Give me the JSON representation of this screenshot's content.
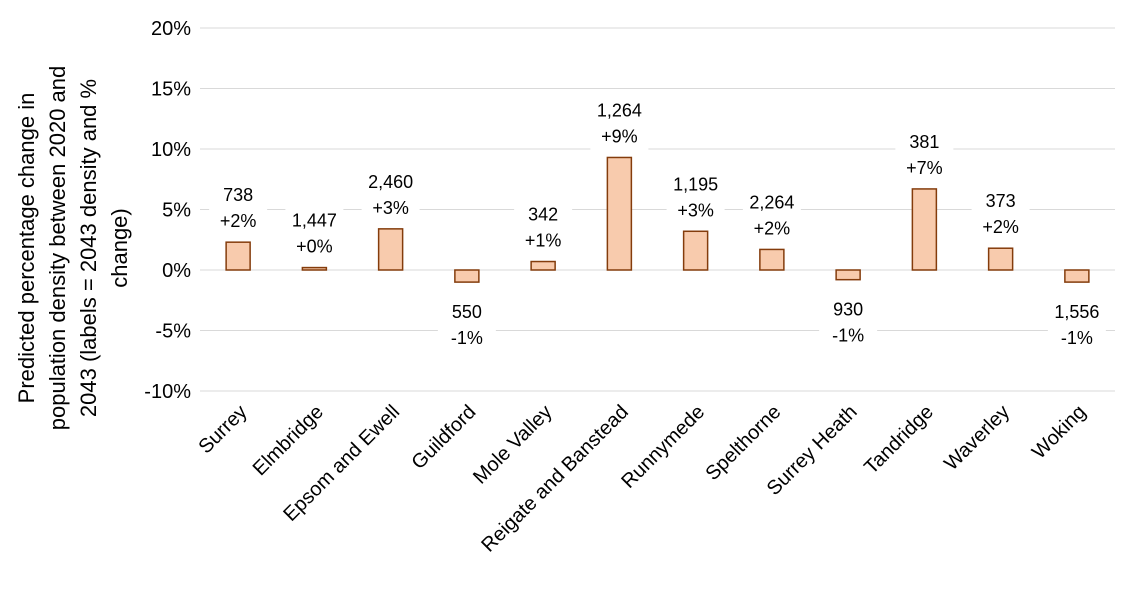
{
  "chart_data": {
    "type": "bar",
    "title": "",
    "xlabel": "",
    "ylabel": "Predicted percentage change in population density between 2020 and 2043 (labels = 2043 density and % change)",
    "ylabel_lines": [
      "Predicted percentage change in",
      "population density between 2020 and",
      "2043 (labels = 2043 density and %",
      "change)"
    ],
    "ylim": [
      -10,
      20
    ],
    "yticks": [
      20,
      15,
      10,
      5,
      0,
      -5,
      -10
    ],
    "ytick_labels": [
      "20%",
      "15%",
      "10%",
      "5%",
      "0%",
      "-5%",
      "-10%"
    ],
    "grid": true,
    "legend": "none",
    "categories": [
      "Surrey",
      "Elmbridge",
      "Epsom and Ewell",
      "Guildford",
      "Mole Valley",
      "Reigate and Banstead",
      "Runnymede",
      "Spelthorne",
      "Surrey Heath",
      "Tandridge",
      "Waverley",
      "Woking"
    ],
    "values": [
      2.3,
      0.2,
      3.4,
      -1.0,
      0.7,
      9.3,
      3.2,
      1.7,
      -0.8,
      6.7,
      1.8,
      -1.0
    ],
    "densities": [
      "738",
      "1,447",
      "2,460",
      "550",
      "342",
      "1,264",
      "1,195",
      "2,264",
      "930",
      "381",
      "373",
      "1,556"
    ],
    "pct_labels": [
      "+2%",
      "+0%",
      "+3%",
      "-1%",
      "+1%",
      "+9%",
      "+3%",
      "+2%",
      "-1%",
      "+7%",
      "+2%",
      "-1%"
    ],
    "colors": {
      "bar_fill": "#F8CBAD",
      "bar_stroke": "#843C0C",
      "grid": "#D9D9D9",
      "text": "#000000"
    }
  }
}
